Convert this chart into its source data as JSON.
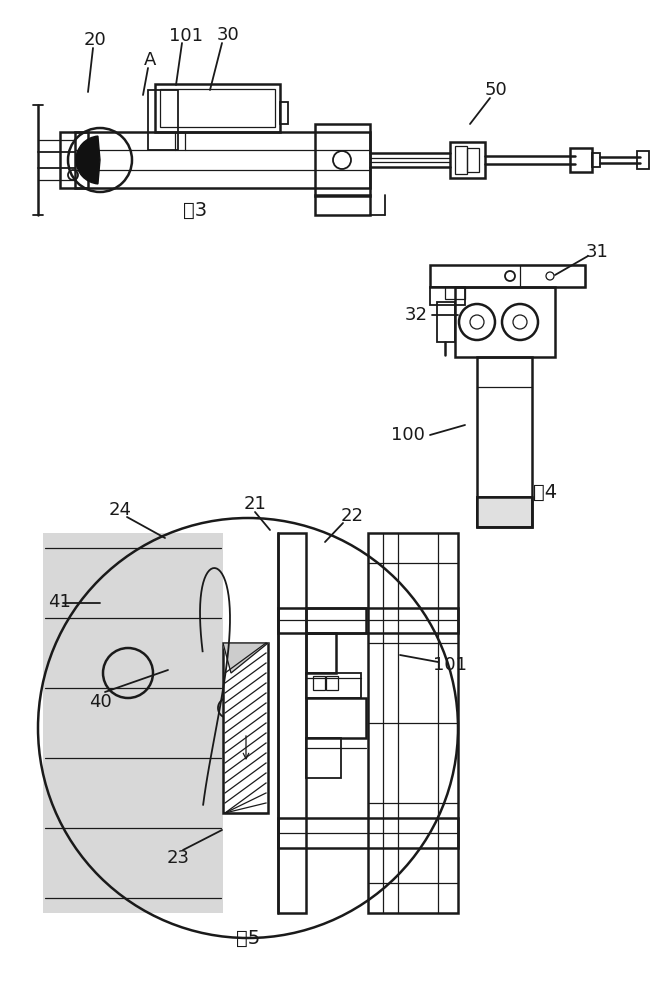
{
  "bg_color": "#ffffff",
  "line_color": "#1a1a1a",
  "figsize": [
    6.55,
    10.0
  ],
  "dpi": 100,
  "labels": {
    "fig3": "图3",
    "fig4": "图4",
    "fig5": "图5",
    "n20": "20",
    "n101a": "101",
    "n30": "30",
    "n50": "50",
    "nA": "A",
    "n31": "31",
    "n32": "32",
    "n100": "100",
    "n21": "21",
    "n22": "22",
    "n23": "23",
    "n24": "24",
    "n40": "40",
    "n41": "41",
    "n101b": "101"
  }
}
